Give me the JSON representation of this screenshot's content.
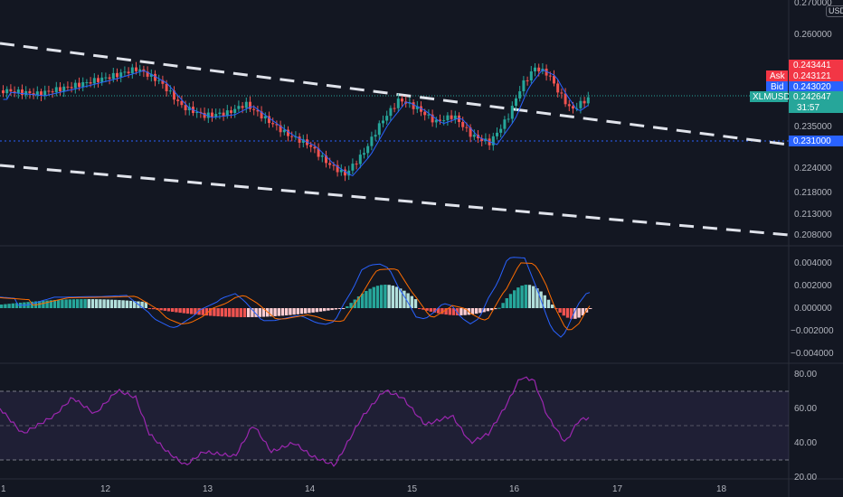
{
  "currency": "USD",
  "symbol": "XLMUSD",
  "countdown": "31:57",
  "price_axis": [
    "0.270000",
    "0.260000",
    "0.235000",
    "0.224000",
    "0.218000",
    "0.213000",
    "0.208000"
  ],
  "price_tags": {
    "ask": {
      "label": "Ask",
      "value": "0.243441"
    },
    "ask2": {
      "value": "0.243121"
    },
    "bid": {
      "label": "Bid",
      "value": "0.243020"
    },
    "last": {
      "value": "0.242647"
    },
    "hline": {
      "value": "0.231000"
    }
  },
  "macd_axis": [
    "0.004000",
    "0.002000",
    "0.000000",
    "−0.002000",
    "−0.004000"
  ],
  "rsi_axis": [
    "80.00",
    "60.00",
    "40.00",
    "20.00"
  ],
  "time_axis": [
    "1",
    "12",
    "13",
    "14",
    "15",
    "16",
    "17",
    "18"
  ],
  "colors": {
    "up": "#26a69a",
    "down": "#ef5350",
    "ask": "#f23645",
    "bid": "#2962ff",
    "rsi": "#9c27b0",
    "macd": "#2962ff",
    "signal": "#ff6d00"
  },
  "icons": {
    "hline_tool": "dashed-trendline"
  }
}
